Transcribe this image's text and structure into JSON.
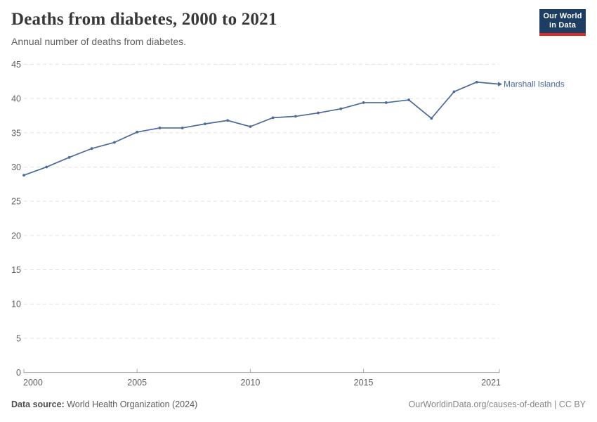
{
  "header": {
    "title": "Deaths from diabetes, 2000 to 2021",
    "subtitle": "Annual number of deaths from diabetes.",
    "logo": {
      "line1": "Our World",
      "line2": "in Data",
      "bg_color": "#1d3d63",
      "accent_color": "#dc2c27"
    }
  },
  "chart_data": {
    "type": "line",
    "title": "Deaths from diabetes, 2000 to 2021",
    "subtitle": "Annual number of deaths from diabetes.",
    "xlim": [
      2000,
      2021
    ],
    "ylim": [
      0,
      45
    ],
    "x_ticks": [
      2000,
      2005,
      2010,
      2015,
      2021
    ],
    "y_ticks": [
      0,
      5,
      10,
      15,
      20,
      25,
      30,
      35,
      40,
      45
    ],
    "grid": "horizontal-dashed",
    "legend_position": "end-of-line-label",
    "series": [
      {
        "name": "Marshall Islands",
        "color": "#4C6A9C",
        "x": [
          2000,
          2001,
          2002,
          2003,
          2004,
          2005,
          2006,
          2007,
          2008,
          2009,
          2010,
          2011,
          2012,
          2013,
          2014,
          2015,
          2016,
          2017,
          2018,
          2019,
          2020,
          2021
        ],
        "values": [
          28.8,
          30.0,
          31.4,
          32.7,
          33.6,
          35.1,
          35.7,
          35.7,
          36.3,
          36.8,
          35.9,
          37.2,
          37.4,
          37.9,
          38.5,
          39.4,
          39.4,
          39.8,
          37.1,
          41.0,
          42.4,
          42.1
        ]
      }
    ],
    "colors": {
      "line": "#4C6A9C",
      "grid": "#e2e2e2",
      "axis": "#a5a5a5",
      "tick_text": "#606060"
    }
  },
  "footer": {
    "source_label": "Data source:",
    "source_text": " World Health Organization (2024)",
    "credit": "OurWorldinData.org/causes-of-death | CC BY"
  }
}
